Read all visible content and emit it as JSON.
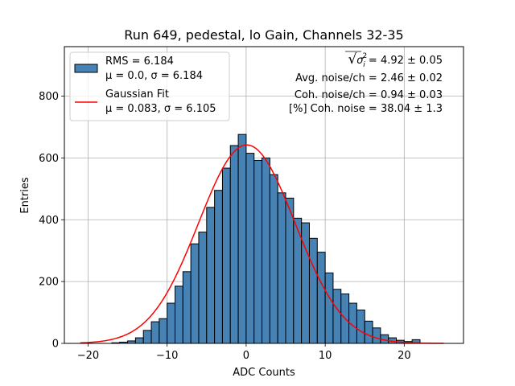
{
  "chart_data": {
    "type": "bar",
    "title": "Run 649, pedestal, lo Gain, Channels 32-35",
    "xlabel": "ADC Counts",
    "ylabel": "Entries",
    "xlim": [
      -23,
      27.5
    ],
    "ylim": [
      0,
      960
    ],
    "grid": true,
    "xticks": [
      -20,
      -10,
      0,
      10,
      20
    ],
    "yticks": [
      0,
      200,
      400,
      600,
      800
    ],
    "bin_width": 1,
    "bin_edges_start": -17,
    "histogram": {
      "x": [
        -17,
        -16,
        -15,
        -14,
        -13,
        -12,
        -11,
        -10,
        -9,
        -8,
        -7,
        -6,
        -5,
        -4,
        -3,
        -2,
        -1,
        0,
        1,
        2,
        3,
        4,
        5,
        6,
        7,
        8,
        9,
        10,
        11,
        12,
        13,
        14,
        15,
        16,
        17,
        18,
        19,
        20,
        21
      ],
      "values": [
        2,
        4,
        8,
        18,
        42,
        70,
        80,
        130,
        185,
        232,
        322,
        360,
        440,
        495,
        567,
        640,
        676,
        615,
        592,
        600,
        546,
        487,
        470,
        405,
        390,
        340,
        295,
        228,
        175,
        160,
        130,
        108,
        72,
        50,
        28,
        18,
        10,
        6,
        12
      ]
    },
    "series": [
      {
        "name": "RMS = 6.184",
        "name_line2": "μ = 0.0, σ = 6.184",
        "kind": "histogram",
        "color": "#4682b4"
      },
      {
        "name": "Gaussian Fit",
        "name_line2": "μ = 0.083, σ = 6.105",
        "kind": "line",
        "color": "#ff0000",
        "amplitude": 642,
        "mean": 0.083,
        "sigma": 6.105,
        "x_range": [
          -21,
          25
        ]
      }
    ],
    "legend_position": "top-left",
    "annotations": {
      "sigma_prefix": "√",
      "sigma_symbol": "σ",
      "sigma_sup": "2",
      "sigma_sub": "i",
      "sigma_value": " = 4.92 ± 0.05",
      "avg_noise": "Avg. noise/ch = 2.46 ± 0.02",
      "coh_noise": "Coh. noise/ch = 0.94 ± 0.03",
      "pct_coh_noise": "[%] Coh. noise = 38.04 ± 1.3"
    }
  }
}
